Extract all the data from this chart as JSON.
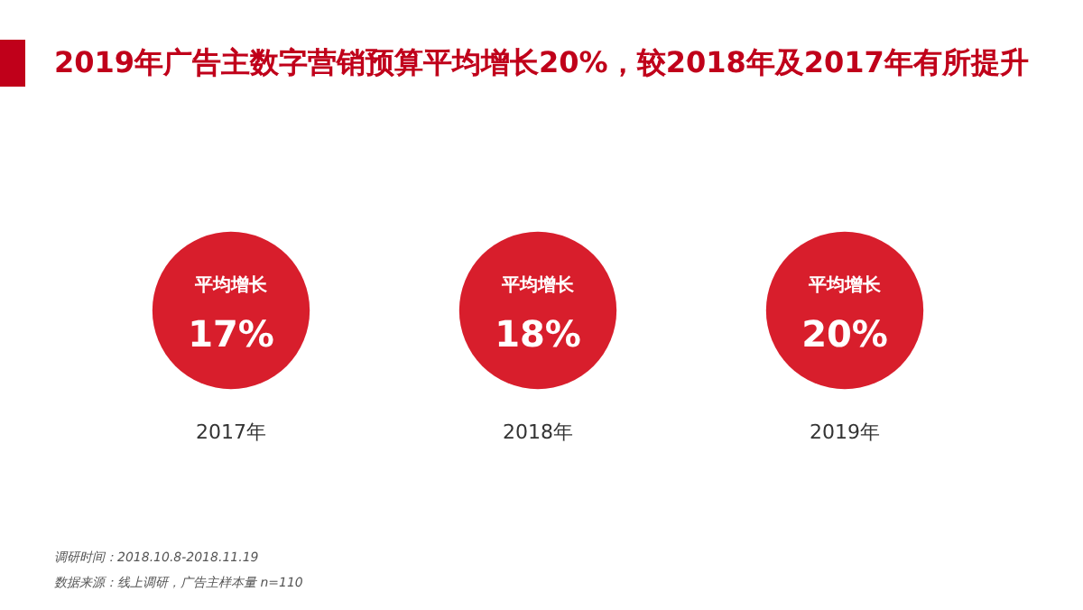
{
  "chart_data": {
    "type": "other",
    "title": "2019年广告主数字营销预算平均增长20%，较2018年及2017年有所提升",
    "categories": [
      "2017年",
      "2018年",
      "2019年"
    ],
    "values": [
      17,
      18,
      20
    ],
    "value_labels": [
      "17%",
      "18%",
      "20%"
    ],
    "colors": [
      "#d81e2c",
      "#d81e2c",
      "#d81e2c"
    ],
    "annotations": [
      {
        "text": "平均增长",
        "x": "2017年"
      },
      {
        "text": "平均增长",
        "x": "2018年"
      },
      {
        "text": "平均增长",
        "x": "2019年"
      },
      "调研时间：2018.10.8-2018.11.19",
      "数据来源：线上调研，广告主样本量 n=110"
    ]
  }
}
